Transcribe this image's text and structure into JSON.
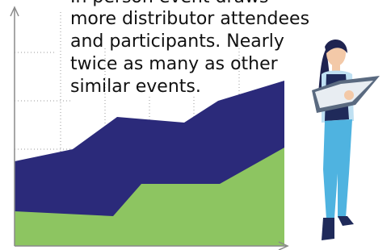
{
  "caption": {
    "lines": [
      "In person event draws",
      "more distributor attendees",
      "and participants. Nearly",
      "twice as many as other",
      "similar events."
    ]
  }
}
